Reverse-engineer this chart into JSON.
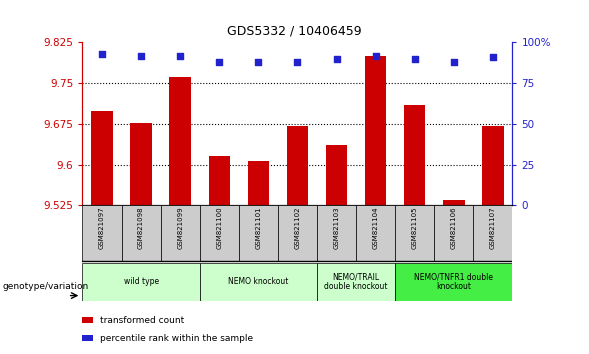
{
  "title": "GDS5332 / 10406459",
  "samples": [
    "GSM821097",
    "GSM821098",
    "GSM821099",
    "GSM821100",
    "GSM821101",
    "GSM821102",
    "GSM821103",
    "GSM821104",
    "GSM821105",
    "GSM821106",
    "GSM821107"
  ],
  "bar_values": [
    9.698,
    9.677,
    9.762,
    9.615,
    9.607,
    9.671,
    9.637,
    9.8,
    9.71,
    9.535,
    9.671
  ],
  "percentile_values": [
    93,
    92,
    92,
    88,
    88,
    88,
    90,
    92,
    90,
    88,
    91
  ],
  "ymin": 9.525,
  "ymax": 9.825,
  "y_ticks": [
    9.525,
    9.6,
    9.675,
    9.75,
    9.825
  ],
  "y2_ticks": [
    0,
    25,
    50,
    75,
    100
  ],
  "bar_color": "#cc0000",
  "dot_color": "#2222cc",
  "group_configs": [
    {
      "start": 0,
      "end": 2,
      "label": "wild type",
      "color": "#ccffcc"
    },
    {
      "start": 3,
      "end": 5,
      "label": "NEMO knockout",
      "color": "#ccffcc"
    },
    {
      "start": 6,
      "end": 7,
      "label": "NEMO/TRAIL\ndouble knockout",
      "color": "#ccffcc"
    },
    {
      "start": 8,
      "end": 10,
      "label": "NEMO/TNFR1 double\nknockout",
      "color": "#44ee44"
    }
  ],
  "xlabel": "genotype/variation",
  "legend_bar_label": "transformed count",
  "legend_dot_label": "percentile rank within the sample",
  "left_axis_color": "#cc0000",
  "right_axis_color": "#2222cc",
  "sample_box_color": "#cccccc",
  "grid_ticks": [
    9.6,
    9.675,
    9.75
  ]
}
